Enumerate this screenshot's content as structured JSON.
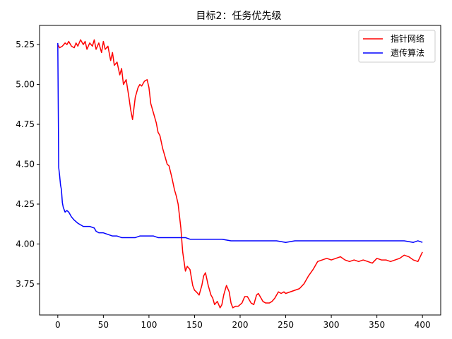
{
  "chart_data": {
    "type": "line",
    "title": "目标2：任务优先级",
    "xlabel": "",
    "ylabel": "",
    "xlim": [
      -20,
      420
    ],
    "ylim": [
      3.555,
      5.37
    ],
    "xticks": [
      0,
      50,
      100,
      150,
      200,
      250,
      300,
      350,
      400
    ],
    "yticks": [
      3.75,
      4.0,
      4.25,
      4.5,
      4.75,
      5.0,
      5.25
    ],
    "ytick_labels": [
      "3.75",
      "4.00",
      "4.25",
      "4.50",
      "4.75",
      "5.00",
      "5.25"
    ],
    "grid": false,
    "legend_position": "top-right",
    "series": [
      {
        "name": "指针网络",
        "color": "#ff0000",
        "x": [
          0,
          2,
          5,
          8,
          10,
          12,
          15,
          18,
          20,
          22,
          25,
          28,
          30,
          32,
          35,
          38,
          40,
          42,
          45,
          48,
          50,
          52,
          55,
          58,
          60,
          62,
          65,
          68,
          70,
          72,
          75,
          78,
          80,
          82,
          85,
          88,
          90,
          92,
          95,
          98,
          100,
          102,
          105,
          108,
          110,
          112,
          115,
          118,
          120,
          122,
          125,
          128,
          130,
          132,
          135,
          137,
          140,
          142,
          145,
          148,
          150,
          152,
          155,
          158,
          160,
          162,
          165,
          168,
          170,
          172,
          175,
          178,
          180,
          182,
          185,
          188,
          190,
          192,
          195,
          198,
          200,
          202,
          205,
          208,
          210,
          212,
          215,
          218,
          220,
          222,
          225,
          228,
          230,
          232,
          235,
          238,
          240,
          242,
          245,
          248,
          250,
          255,
          260,
          265,
          270,
          275,
          280,
          285,
          290,
          295,
          300,
          305,
          310,
          315,
          320,
          325,
          330,
          335,
          340,
          345,
          350,
          355,
          360,
          365,
          370,
          375,
          380,
          385,
          390,
          395,
          400
        ],
        "values": [
          5.25,
          5.23,
          5.24,
          5.26,
          5.25,
          5.27,
          5.24,
          5.23,
          5.26,
          5.24,
          5.28,
          5.25,
          5.27,
          5.22,
          5.26,
          5.24,
          5.28,
          5.22,
          5.26,
          5.2,
          5.27,
          5.22,
          5.24,
          5.15,
          5.2,
          5.12,
          5.14,
          5.06,
          5.1,
          5.0,
          5.03,
          4.92,
          4.84,
          4.78,
          4.92,
          4.98,
          5.0,
          4.99,
          5.02,
          5.03,
          4.98,
          4.88,
          4.82,
          4.76,
          4.7,
          4.68,
          4.6,
          4.54,
          4.5,
          4.49,
          4.42,
          4.34,
          4.3,
          4.25,
          4.1,
          3.95,
          3.83,
          3.86,
          3.84,
          3.74,
          3.71,
          3.7,
          3.68,
          3.74,
          3.8,
          3.82,
          3.74,
          3.68,
          3.66,
          3.62,
          3.64,
          3.6,
          3.62,
          3.68,
          3.74,
          3.7,
          3.63,
          3.6,
          3.61,
          3.61,
          3.62,
          3.63,
          3.67,
          3.67,
          3.65,
          3.63,
          3.62,
          3.68,
          3.69,
          3.67,
          3.64,
          3.63,
          3.63,
          3.63,
          3.64,
          3.66,
          3.68,
          3.7,
          3.69,
          3.7,
          3.69,
          3.7,
          3.71,
          3.72,
          3.75,
          3.8,
          3.84,
          3.89,
          3.9,
          3.91,
          3.9,
          3.91,
          3.92,
          3.9,
          3.89,
          3.9,
          3.89,
          3.9,
          3.89,
          3.88,
          3.91,
          3.9,
          3.9,
          3.89,
          3.9,
          3.91,
          3.93,
          3.92,
          3.9,
          3.89,
          3.95
        ]
      },
      {
        "name": "遗传算法",
        "color": "#0000ff",
        "x": [
          0,
          1,
          2,
          3,
          4,
          5,
          6,
          8,
          10,
          12,
          15,
          18,
          20,
          22,
          25,
          28,
          30,
          35,
          40,
          42,
          45,
          50,
          55,
          60,
          65,
          70,
          75,
          80,
          85,
          90,
          95,
          100,
          105,
          110,
          115,
          120,
          125,
          130,
          135,
          140,
          145,
          150,
          160,
          170,
          180,
          190,
          200,
          210,
          220,
          230,
          240,
          250,
          260,
          270,
          280,
          290,
          300,
          310,
          320,
          330,
          340,
          350,
          360,
          370,
          380,
          390,
          395,
          400
        ],
        "values": [
          5.26,
          4.48,
          4.43,
          4.37,
          4.34,
          4.26,
          4.23,
          4.2,
          4.21,
          4.2,
          4.17,
          4.15,
          4.14,
          4.13,
          4.12,
          4.11,
          4.11,
          4.11,
          4.1,
          4.08,
          4.07,
          4.07,
          4.06,
          4.05,
          4.05,
          4.04,
          4.04,
          4.04,
          4.04,
          4.05,
          4.05,
          4.05,
          4.05,
          4.04,
          4.04,
          4.04,
          4.04,
          4.04,
          4.04,
          4.04,
          4.03,
          4.03,
          4.03,
          4.03,
          4.03,
          4.02,
          4.02,
          4.02,
          4.02,
          4.02,
          4.02,
          4.01,
          4.02,
          4.02,
          4.02,
          4.02,
          4.02,
          4.02,
          4.02,
          4.02,
          4.02,
          4.02,
          4.02,
          4.02,
          4.02,
          4.01,
          4.02,
          4.01
        ]
      }
    ]
  }
}
